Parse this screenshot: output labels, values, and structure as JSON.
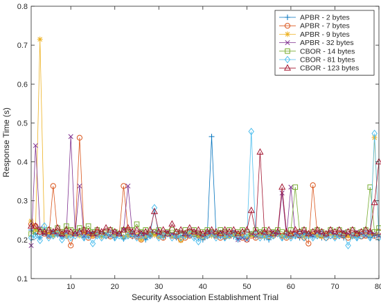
{
  "chart_data": {
    "type": "line",
    "title": "",
    "xlabel": "Security Association Establishment Trial",
    "ylabel": "Response Time (s)",
    "xlim": [
      1,
      80
    ],
    "ylim": [
      0.1,
      0.8
    ],
    "x_ticks": [
      10,
      20,
      30,
      40,
      50,
      60,
      70,
      80
    ],
    "y_ticks": [
      0.1,
      0.2,
      0.3,
      0.4,
      0.5,
      0.6,
      0.7,
      0.8
    ],
    "grid": false,
    "legend_position": "top-right",
    "x": [
      1,
      2,
      3,
      4,
      5,
      6,
      7,
      8,
      9,
      10,
      11,
      12,
      13,
      14,
      15,
      16,
      17,
      18,
      19,
      20,
      21,
      22,
      23,
      24,
      25,
      26,
      27,
      28,
      29,
      30,
      31,
      32,
      33,
      34,
      35,
      36,
      37,
      38,
      39,
      40,
      41,
      42,
      43,
      44,
      45,
      46,
      47,
      48,
      49,
      50,
      51,
      52,
      53,
      54,
      55,
      56,
      57,
      58,
      59,
      60,
      61,
      62,
      63,
      64,
      65,
      66,
      67,
      68,
      69,
      70,
      71,
      72,
      73,
      74,
      75,
      76,
      77,
      78,
      79,
      80
    ],
    "series": [
      {
        "name": "APBR - 2 bytes",
        "color": "#0072BD",
        "marker": "plus",
        "values": [
          0.225,
          0.215,
          0.205,
          0.218,
          0.21,
          0.22,
          0.212,
          0.208,
          0.215,
          0.21,
          0.218,
          0.212,
          0.205,
          0.21,
          0.22,
          0.215,
          0.208,
          0.21,
          0.212,
          0.205,
          0.215,
          0.202,
          0.21,
          0.208,
          0.21,
          0.215,
          0.2,
          0.21,
          0.212,
          0.208,
          0.205,
          0.215,
          0.21,
          0.205,
          0.21,
          0.215,
          0.212,
          0.208,
          0.205,
          0.2,
          0.21,
          0.465,
          0.215,
          0.21,
          0.205,
          0.21,
          0.208,
          0.2,
          0.21,
          0.205,
          0.215,
          0.208,
          0.21,
          0.205,
          0.2,
          0.21,
          0.215,
          0.205,
          0.21,
          0.208,
          0.21,
          0.205,
          0.215,
          0.21,
          0.208,
          0.21,
          0.205,
          0.21,
          0.215,
          0.208,
          0.21,
          0.205,
          0.21,
          0.208,
          0.205,
          0.215,
          0.21,
          0.205,
          0.21,
          0.21
        ]
      },
      {
        "name": "APBR - 7 bytes",
        "color": "#D95319",
        "marker": "circle",
        "values": [
          0.24,
          0.235,
          0.22,
          0.215,
          0.21,
          0.338,
          0.215,
          0.22,
          0.21,
          0.185,
          0.22,
          0.462,
          0.215,
          0.205,
          0.21,
          0.22,
          0.215,
          0.21,
          0.208,
          0.212,
          0.215,
          0.338,
          0.225,
          0.21,
          0.208,
          0.2,
          0.21,
          0.215,
          0.22,
          0.21,
          0.205,
          0.215,
          0.21,
          0.208,
          0.2,
          0.205,
          0.21,
          0.215,
          0.21,
          0.205,
          0.21,
          0.215,
          0.21,
          0.205,
          0.208,
          0.21,
          0.215,
          0.21,
          0.205,
          0.2,
          0.21,
          0.205,
          0.21,
          0.215,
          0.208,
          0.21,
          0.215,
          0.21,
          0.205,
          0.21,
          0.215,
          0.21,
          0.205,
          0.19,
          0.34,
          0.215,
          0.21,
          0.205,
          0.21,
          0.208,
          0.215,
          0.21,
          0.205,
          0.21,
          0.215,
          0.208,
          0.21,
          0.215,
          0.21,
          0.22
        ]
      },
      {
        "name": "APBR - 9 bytes",
        "color": "#EDB120",
        "marker": "star",
        "values": [
          0.248,
          0.225,
          0.715,
          0.22,
          0.215,
          0.21,
          0.218,
          0.215,
          0.21,
          0.212,
          0.215,
          0.21,
          0.218,
          0.215,
          0.21,
          0.212,
          0.208,
          0.215,
          0.21,
          0.212,
          0.215,
          0.208,
          0.21,
          0.215,
          0.212,
          0.2,
          0.21,
          0.215,
          0.212,
          0.208,
          0.21,
          0.215,
          0.21,
          0.212,
          0.198,
          0.21,
          0.215,
          0.212,
          0.21,
          0.208,
          0.215,
          0.21,
          0.212,
          0.215,
          0.21,
          0.208,
          0.212,
          0.215,
          0.21,
          0.205,
          0.212,
          0.21,
          0.215,
          0.208,
          0.21,
          0.212,
          0.215,
          0.21,
          0.208,
          0.212,
          0.215,
          0.21,
          0.208,
          0.212,
          0.215,
          0.21,
          0.208,
          0.212,
          0.215,
          0.21,
          0.212,
          0.215,
          0.21,
          0.208,
          0.212,
          0.215,
          0.21,
          0.212,
          0.462,
          0.21
        ]
      },
      {
        "name": "APBR - 32 bytes",
        "color": "#7E2F8E",
        "marker": "x",
        "values": [
          0.185,
          0.442,
          0.23,
          0.215,
          0.21,
          0.22,
          0.215,
          0.21,
          0.22,
          0.465,
          0.215,
          0.338,
          0.21,
          0.22,
          0.215,
          0.21,
          0.22,
          0.215,
          0.21,
          0.22,
          0.215,
          0.225,
          0.338,
          0.215,
          0.21,
          0.22,
          0.215,
          0.21,
          0.22,
          0.215,
          0.21,
          0.22,
          0.215,
          0.21,
          0.22,
          0.215,
          0.21,
          0.22,
          0.215,
          0.21,
          0.22,
          0.215,
          0.21,
          0.22,
          0.215,
          0.21,
          0.22,
          0.2,
          0.205,
          0.2,
          0.215,
          0.21,
          0.22,
          0.215,
          0.21,
          0.22,
          0.215,
          0.32,
          0.21,
          0.335,
          0.215,
          0.21,
          0.22,
          0.215,
          0.21,
          0.22,
          0.215,
          0.21,
          0.22,
          0.215,
          0.21,
          0.22,
          0.215,
          0.21,
          0.22,
          0.215,
          0.21,
          0.22,
          0.215,
          0.21
        ]
      },
      {
        "name": "CBOR - 14 bytes",
        "color": "#77AC30",
        "marker": "square",
        "values": [
          0.215,
          0.22,
          0.225,
          0.22,
          0.225,
          0.215,
          0.23,
          0.22,
          0.235,
          0.225,
          0.22,
          0.23,
          0.225,
          0.235,
          0.22,
          0.225,
          0.215,
          0.22,
          0.225,
          0.22,
          0.215,
          0.225,
          0.22,
          0.225,
          0.24,
          0.22,
          0.225,
          0.215,
          0.22,
          0.225,
          0.215,
          0.22,
          0.225,
          0.22,
          0.215,
          0.225,
          0.22,
          0.225,
          0.215,
          0.22,
          0.225,
          0.22,
          0.215,
          0.225,
          0.22,
          0.225,
          0.215,
          0.22,
          0.225,
          0.22,
          0.215,
          0.225,
          0.22,
          0.225,
          0.215,
          0.22,
          0.225,
          0.22,
          0.215,
          0.225,
          0.335,
          0.22,
          0.225,
          0.215,
          0.22,
          0.225,
          0.22,
          0.215,
          0.225,
          0.22,
          0.225,
          0.215,
          0.22,
          0.225,
          0.215,
          0.22,
          0.225,
          0.335,
          0.22,
          0.23
        ]
      },
      {
        "name": "CBOR - 81 bytes",
        "color": "#4DBEEE",
        "marker": "diamond",
        "values": [
          0.205,
          0.21,
          0.198,
          0.235,
          0.205,
          0.21,
          0.215,
          0.2,
          0.21,
          0.205,
          0.21,
          0.215,
          0.205,
          0.21,
          0.19,
          0.21,
          0.205,
          0.21,
          0.215,
          0.205,
          0.21,
          0.205,
          0.21,
          0.215,
          0.205,
          0.21,
          0.205,
          0.21,
          0.282,
          0.205,
          0.21,
          0.215,
          0.205,
          0.21,
          0.205,
          0.21,
          0.215,
          0.205,
          0.195,
          0.205,
          0.21,
          0.215,
          0.205,
          0.21,
          0.205,
          0.21,
          0.215,
          0.205,
          0.21,
          0.205,
          0.478,
          0.215,
          0.205,
          0.21,
          0.205,
          0.21,
          0.215,
          0.205,
          0.21,
          0.205,
          0.21,
          0.215,
          0.205,
          0.21,
          0.205,
          0.21,
          0.215,
          0.205,
          0.21,
          0.205,
          0.21,
          0.215,
          0.185,
          0.21,
          0.205,
          0.21,
          0.215,
          0.205,
          0.473,
          0.205
        ]
      },
      {
        "name": "CBOR - 123 bytes",
        "color": "#A2142F",
        "marker": "triangle",
        "values": [
          0.235,
          0.235,
          0.22,
          0.22,
          0.225,
          0.22,
          0.23,
          0.215,
          0.225,
          0.22,
          0.215,
          0.22,
          0.225,
          0.22,
          0.215,
          0.225,
          0.22,
          0.23,
          0.225,
          0.22,
          0.215,
          0.225,
          0.23,
          0.22,
          0.225,
          0.215,
          0.22,
          0.225,
          0.272,
          0.22,
          0.225,
          0.215,
          0.24,
          0.22,
          0.225,
          0.215,
          0.23,
          0.22,
          0.225,
          0.215,
          0.22,
          0.225,
          0.22,
          0.215,
          0.225,
          0.22,
          0.225,
          0.215,
          0.22,
          0.225,
          0.275,
          0.22,
          0.425,
          0.22,
          0.225,
          0.215,
          0.22,
          0.335,
          0.22,
          0.215,
          0.225,
          0.22,
          0.225,
          0.215,
          0.22,
          0.225,
          0.22,
          0.215,
          0.225,
          0.22,
          0.225,
          0.215,
          0.22,
          0.225,
          0.215,
          0.22,
          0.225,
          0.22,
          0.295,
          0.4
        ]
      }
    ]
  }
}
